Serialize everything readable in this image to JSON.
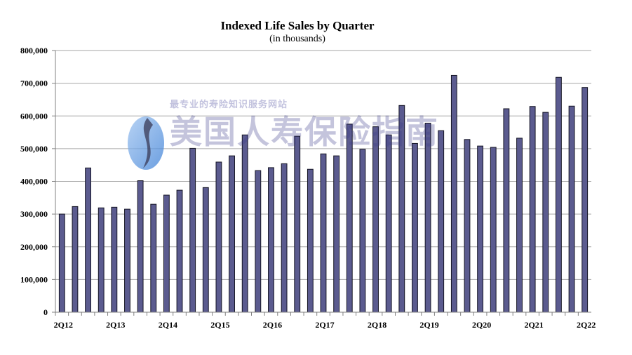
{
  "chart_data": {
    "type": "bar",
    "title": "Indexed Life Sales by Quarter",
    "subtitle": "(in thousands)",
    "xlabel": "",
    "ylabel": "",
    "ylim": [
      0,
      800000
    ],
    "y_ticks": [
      "0",
      "100,000",
      "200,000",
      "300,000",
      "400,000",
      "500,000",
      "600,000",
      "700,000",
      "800,000"
    ],
    "grid": true,
    "legend": "none",
    "bar_color": "#5b5b8f",
    "categories": [
      "2Q12",
      "3Q12",
      "4Q12",
      "1Q13",
      "2Q13",
      "3Q13",
      "4Q13",
      "1Q14",
      "2Q14",
      "3Q14",
      "4Q14",
      "1Q15",
      "2Q15",
      "3Q15",
      "4Q15",
      "1Q16",
      "2Q16",
      "3Q16",
      "4Q16",
      "1Q17",
      "2Q17",
      "3Q17",
      "4Q17",
      "1Q18",
      "2Q18",
      "3Q18",
      "4Q18",
      "1Q19",
      "2Q19",
      "3Q19",
      "4Q19",
      "1Q20",
      "2Q20",
      "3Q20",
      "4Q20",
      "1Q21",
      "2Q21",
      "3Q21",
      "4Q21",
      "1Q22",
      "2Q22"
    ],
    "x_tick_labels": [
      "2Q12",
      "2Q13",
      "2Q14",
      "2Q15",
      "2Q16",
      "2Q17",
      "2Q18",
      "2Q19",
      "2Q20",
      "2Q21",
      "2Q22"
    ],
    "values": [
      300000,
      323000,
      441000,
      319000,
      321000,
      315000,
      402000,
      330000,
      358000,
      373000,
      501000,
      381000,
      459000,
      478000,
      542000,
      433000,
      442000,
      454000,
      538000,
      437000,
      484000,
      478000,
      575000,
      498000,
      567000,
      542000,
      632000,
      516000,
      578000,
      555000,
      724000,
      528000,
      508000,
      504000,
      622000,
      532000,
      629000,
      611000,
      718000,
      630000,
      687000
    ]
  },
  "watermark": {
    "text": "美国人寿保险指南",
    "subtext": "最专业的寿险知识服务网站"
  }
}
